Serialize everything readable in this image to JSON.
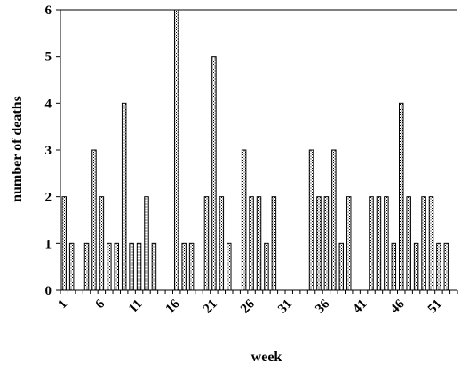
{
  "chart_data": {
    "type": "bar",
    "xlabel": "week",
    "ylabel": "number of deaths",
    "ylim": [
      0,
      6
    ],
    "yticks": [
      "0",
      "1",
      "2",
      "3",
      "4",
      "5",
      "6"
    ],
    "xticks": [
      "1",
      "6",
      "11",
      "16",
      "21",
      "26",
      "31",
      "36",
      "41",
      "46",
      "51"
    ],
    "x": [
      1,
      2,
      3,
      4,
      5,
      6,
      7,
      8,
      9,
      10,
      11,
      12,
      13,
      14,
      15,
      16,
      17,
      18,
      19,
      20,
      21,
      22,
      23,
      24,
      25,
      26,
      27,
      28,
      29,
      30,
      31,
      32,
      33,
      34,
      35,
      36,
      37,
      38,
      39,
      40,
      41,
      42,
      43,
      44,
      45,
      46,
      47,
      48,
      49,
      50,
      51,
      52,
      53
    ],
    "values": [
      2,
      1,
      0,
      1,
      3,
      2,
      1,
      1,
      4,
      1,
      1,
      2,
      1,
      0,
      0,
      6,
      1,
      1,
      0,
      2,
      5,
      2,
      1,
      0,
      3,
      2,
      2,
      1,
      2,
      0,
      0,
      0,
      0,
      3,
      2,
      2,
      3,
      1,
      2,
      0,
      0,
      2,
      2,
      2,
      1,
      4,
      2,
      1,
      2,
      2,
      1,
      1,
      0
    ],
    "grid": false,
    "bar_fill": "#ffffff",
    "bar_pattern_color": "#000000",
    "axis_color": "#000000"
  }
}
